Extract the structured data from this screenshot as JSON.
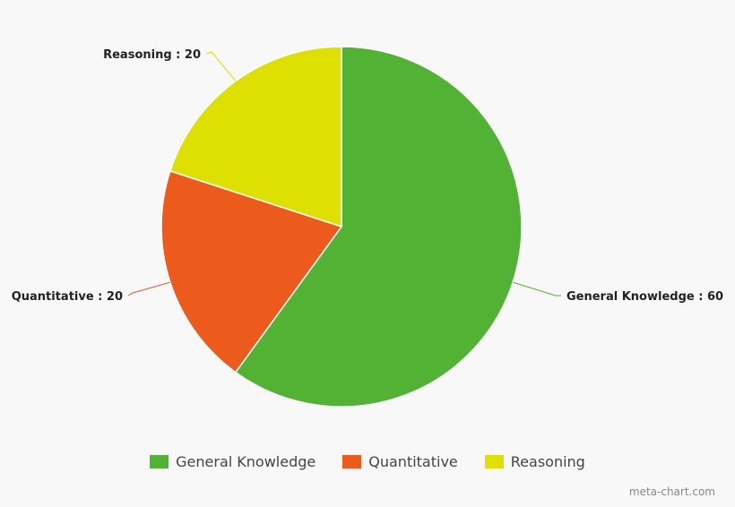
{
  "chart_data": {
    "type": "pie",
    "title": "",
    "labels": [
      "General Knowledge",
      "Quantitative",
      "Reasoning"
    ],
    "values": [
      60,
      20,
      20
    ],
    "colors": [
      "#52b233",
      "#ec5a1c",
      "#dde000"
    ],
    "data_label_separator": " : ",
    "legend_position": "bottom"
  },
  "watermark": "meta-chart.com"
}
